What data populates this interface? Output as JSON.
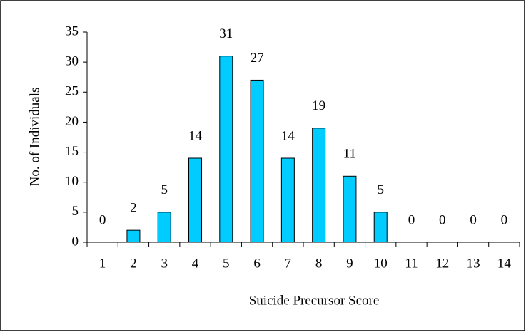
{
  "chart_data": {
    "type": "bar",
    "x_label": "Suicide Precursor Score",
    "y_label": "No. of Individuals",
    "categories": [
      1,
      2,
      3,
      4,
      5,
      6,
      7,
      8,
      9,
      10,
      11,
      12,
      13,
      14
    ],
    "values": [
      0,
      2,
      5,
      14,
      31,
      27,
      14,
      19,
      11,
      5,
      0,
      0,
      0,
      0
    ],
    "color": "#00ccff",
    "ylim": [
      0,
      35
    ],
    "yticks": [
      0,
      5,
      10,
      15,
      20,
      25,
      30,
      35
    ],
    "grid": false,
    "data_labels": true
  }
}
